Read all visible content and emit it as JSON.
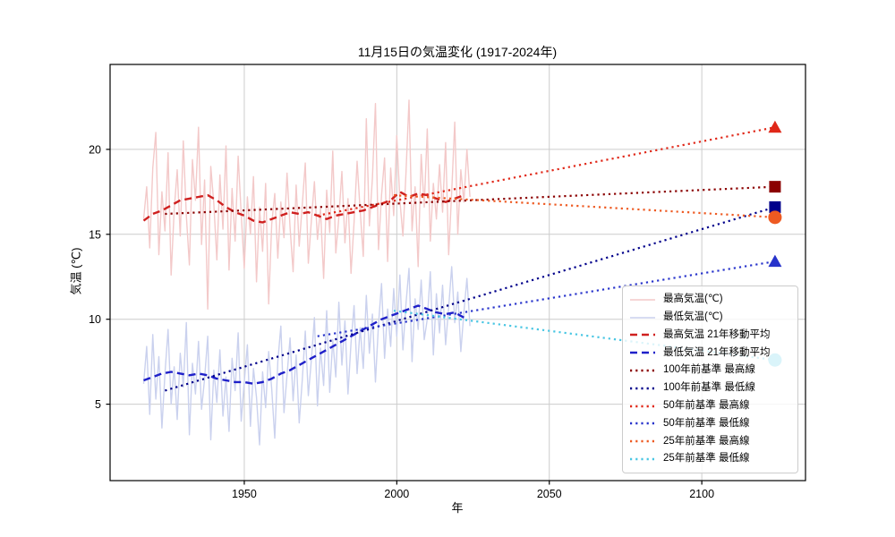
{
  "chart": {
    "title": "11月15日の気温変化 (1917-2024年)",
    "xlabel": "年",
    "ylabel": "気温 (℃)"
  },
  "chart_data": {
    "type": "line",
    "title": "11月15日の気温変化 (1917-2024年)",
    "xlabel": "年",
    "ylabel": "気温 (℃)",
    "xlim": [
      1906,
      2134
    ],
    "ylim": [
      0.5,
      25
    ],
    "xticks": [
      1950,
      2000,
      2050,
      2100
    ],
    "yticks": [
      5,
      10,
      15,
      20
    ],
    "grid": true,
    "grid_color": "#cccccc",
    "legend_position": "lower right",
    "series": [
      {
        "id": "max-raw",
        "name": "最高気温(℃)",
        "style": "solid",
        "color": "#f3c9c9",
        "width": 1.4,
        "x_start": 1917,
        "x_step": 1,
        "values": [
          15.9,
          17.8,
          14.2,
          18.9,
          21.0,
          13.8,
          17.5,
          15.2,
          19.8,
          12.6,
          16.4,
          18.8,
          14.9,
          20.5,
          16.1,
          13.2,
          19.4,
          17.0,
          21.3,
          14.4,
          18.2,
          10.6,
          19.0,
          16.8,
          13.5,
          18.5,
          15.3,
          20.2,
          12.9,
          17.7,
          14.6,
          19.6,
          16.2,
          13.0,
          17.2,
          15.0,
          18.4,
          12.2,
          16.6,
          14.0,
          18.0,
          10.9,
          15.6,
          17.4,
          13.6,
          16.9,
          14.8,
          18.6,
          15.4,
          12.8,
          17.9,
          14.3,
          16.7,
          19.2,
          13.3,
          15.8,
          18.1,
          14.7,
          16.5,
          12.4,
          17.6,
          15.1,
          19.9,
          13.9,
          16.0,
          18.7,
          14.5,
          17.1,
          12.7,
          15.7,
          19.3,
          16.4,
          13.7,
          21.8,
          15.5,
          18.3,
          22.7,
          14.1,
          17.3,
          19.5,
          13.4,
          18.9,
          16.1,
          20.8,
          17.0,
          14.9,
          18.6,
          22.9,
          15.2,
          17.8,
          13.1,
          19.7,
          16.6,
          21.2,
          14.6,
          18.0,
          15.9,
          19.1,
          16.3,
          20.4,
          13.8,
          17.5,
          21.6,
          15.0,
          18.8,
          16.9,
          20.0,
          17.2
        ]
      },
      {
        "id": "min-raw",
        "name": "最低気温(℃)",
        "style": "solid",
        "color": "#cad1ee",
        "width": 1.4,
        "x_start": 1917,
        "x_step": 1,
        "values": [
          6.2,
          8.4,
          4.4,
          9.1,
          5.3,
          7.8,
          3.6,
          6.8,
          9.4,
          5.0,
          7.2,
          4.1,
          8.0,
          6.0,
          9.8,
          3.2,
          7.4,
          5.6,
          8.7,
          4.7,
          6.5,
          9.0,
          2.9,
          7.0,
          5.1,
          8.2,
          4.3,
          6.6,
          3.4,
          7.7,
          5.8,
          9.2,
          4.0,
          6.3,
          8.5,
          3.7,
          7.1,
          5.4,
          2.6,
          6.9,
          4.8,
          8.1,
          5.9,
          3.0,
          7.5,
          9.6,
          4.5,
          6.7,
          8.9,
          5.2,
          7.9,
          3.9,
          6.4,
          9.3,
          5.5,
          7.6,
          10.1,
          4.9,
          8.3,
          6.1,
          10.5,
          5.7,
          8.8,
          6.6,
          11.0,
          7.3,
          9.9,
          5.6,
          8.6,
          10.8,
          6.8,
          9.5,
          7.1,
          11.4,
          8.0,
          10.3,
          6.3,
          9.7,
          12.1,
          7.7,
          10.6,
          8.4,
          11.8,
          9.0,
          12.6,
          8.2,
          10.9,
          13.0,
          7.5,
          11.2,
          9.4,
          12.3,
          8.8,
          10.0,
          12.8,
          7.9,
          11.5,
          9.2,
          12.0,
          8.5,
          10.7,
          13.1,
          9.8,
          11.6,
          8.1,
          10.4,
          12.4,
          9.6
        ]
      },
      {
        "id": "max-ma21",
        "name": "最高気温 21年移動平均",
        "style": "dashed",
        "color": "#cf201f",
        "width": 2.4,
        "x": [
          1917,
          1920,
          1923,
          1926,
          1929,
          1932,
          1935,
          1938,
          1941,
          1944,
          1947,
          1950,
          1953,
          1956,
          1959,
          1962,
          1965,
          1968,
          1971,
          1974,
          1977,
          1980,
          1983,
          1986,
          1989,
          1992,
          1995,
          1998,
          2001,
          2004,
          2007,
          2010,
          2013,
          2016,
          2019,
          2022
        ],
        "values": [
          15.8,
          16.2,
          16.4,
          16.7,
          17.0,
          17.1,
          17.2,
          17.3,
          17.0,
          16.6,
          16.3,
          16.1,
          15.8,
          15.7,
          15.9,
          16.1,
          16.3,
          16.2,
          16.3,
          16.1,
          15.9,
          16.1,
          16.2,
          16.3,
          16.4,
          16.6,
          16.8,
          17.0,
          17.5,
          17.2,
          17.4,
          17.3,
          17.1,
          16.9,
          17.1,
          17.3
        ]
      },
      {
        "id": "min-ma21",
        "name": "最低気温 21年移動平均",
        "style": "dashed",
        "color": "#1f20c9",
        "width": 2.4,
        "x": [
          1917,
          1920,
          1923,
          1926,
          1929,
          1932,
          1935,
          1938,
          1941,
          1944,
          1947,
          1950,
          1953,
          1956,
          1959,
          1962,
          1965,
          1968,
          1971,
          1974,
          1977,
          1980,
          1983,
          1986,
          1989,
          1992,
          1995,
          1998,
          2001,
          2004,
          2007,
          2010,
          2013,
          2016,
          2019,
          2022
        ],
        "values": [
          6.4,
          6.6,
          6.8,
          6.9,
          6.8,
          6.7,
          6.8,
          6.7,
          6.5,
          6.4,
          6.3,
          6.3,
          6.2,
          6.3,
          6.5,
          6.8,
          7.0,
          7.3,
          7.6,
          7.9,
          8.2,
          8.5,
          8.8,
          9.1,
          9.4,
          9.7,
          10.0,
          10.2,
          10.4,
          10.6,
          10.8,
          10.6,
          10.4,
          10.3,
          10.4,
          10.1
        ]
      }
    ],
    "trend_lines": [
      {
        "id": "base100-max",
        "name": "100年前基準 最高線",
        "style": "dotted",
        "color": "#8b0000",
        "from": {
          "year": 1924,
          "value": 16.2
        },
        "to": {
          "year": 2124,
          "value": 17.8
        },
        "end_marker": "square"
      },
      {
        "id": "base100-min",
        "name": "100年前基準 最低線",
        "style": "dotted",
        "color": "#00008b",
        "from": {
          "year": 1924,
          "value": 5.8
        },
        "to": {
          "year": 2124,
          "value": 16.6
        },
        "end_marker": "square"
      },
      {
        "id": "base50-max",
        "name": "50年前基準 最高線",
        "style": "dotted",
        "color": "#e02819",
        "from": {
          "year": 1974,
          "value": 16.1
        },
        "to": {
          "year": 2124,
          "value": 21.3
        },
        "end_marker": "triangle"
      },
      {
        "id": "base50-min",
        "name": "50年前基準 最低線",
        "style": "dotted",
        "color": "#2733cb",
        "from": {
          "year": 1974,
          "value": 9.0
        },
        "to": {
          "year": 2124,
          "value": 13.4
        },
        "end_marker": "triangle"
      },
      {
        "id": "base25-max",
        "name": "25年前基準 最高線",
        "style": "dotted",
        "color": "#ee5a22",
        "from": {
          "year": 1999,
          "value": 17.3
        },
        "to": {
          "year": 2124,
          "value": 16.0
        },
        "end_marker": "circle"
      },
      {
        "id": "base25-min",
        "name": "25年前基準 最低線",
        "style": "dotted",
        "color": "#49c6e3",
        "from": {
          "year": 1999,
          "value": 10.5
        },
        "to": {
          "year": 2124,
          "value": 7.6
        },
        "end_marker": "circle"
      }
    ]
  },
  "legend": {
    "entries": [
      {
        "label": "最高気温(℃)",
        "color": "#f3c9c9",
        "style": "solid"
      },
      {
        "label": "最低気温(℃)",
        "color": "#cad1ee",
        "style": "solid"
      },
      {
        "label": "最高気温 21年移動平均",
        "color": "#cf201f",
        "style": "dashed"
      },
      {
        "label": "最低気温 21年移動平均",
        "color": "#1f20c9",
        "style": "dashed"
      },
      {
        "label": "100年前基準 最高線",
        "color": "#8b0000",
        "style": "dotted"
      },
      {
        "label": "100年前基準 最低線",
        "color": "#00008b",
        "style": "dotted"
      },
      {
        "label": "50年前基準 最高線",
        "color": "#e02819",
        "style": "dotted"
      },
      {
        "label": "50年前基準 最低線",
        "color": "#2733cb",
        "style": "dotted"
      },
      {
        "label": "25年前基準 最高線",
        "color": "#ee5a22",
        "style": "dotted"
      },
      {
        "label": "25年前基準 最低線",
        "color": "#49c6e3",
        "style": "dotted"
      }
    ]
  }
}
